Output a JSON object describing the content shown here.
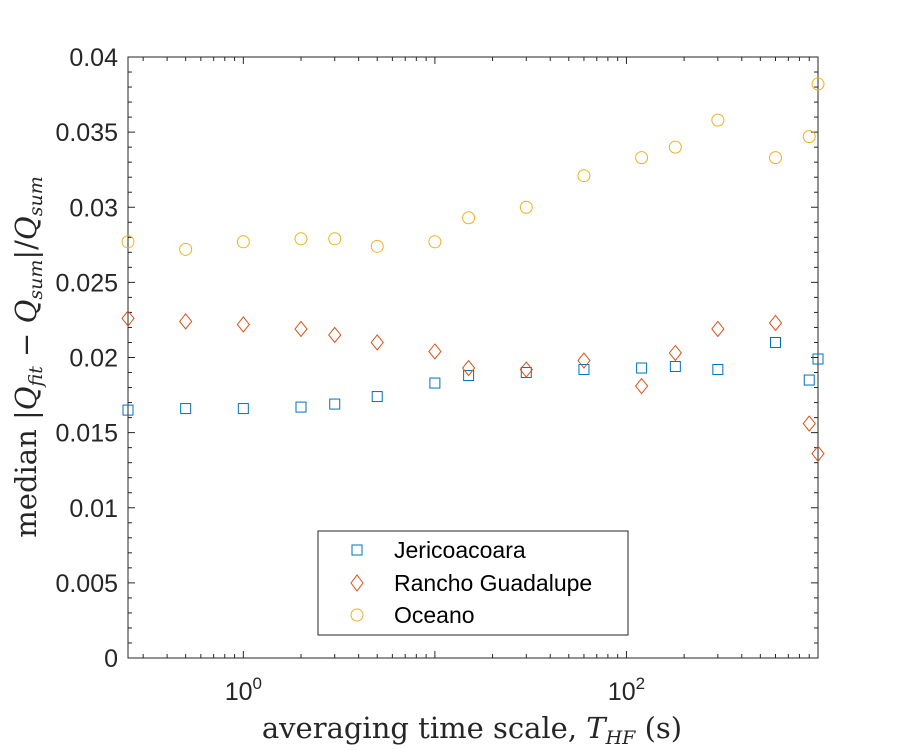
{
  "chart_data": {
    "type": "scatter",
    "x_scale": "log",
    "xlim": [
      0.25,
      1000
    ],
    "ylim": [
      0,
      0.04
    ],
    "x_ticks": [
      {
        "value": 1,
        "base": "10",
        "exp": "0"
      },
      {
        "value": 100,
        "base": "10",
        "exp": "2"
      }
    ],
    "y_ticks": [
      {
        "value": 0,
        "label": "0"
      },
      {
        "value": 0.005,
        "label": "0.005"
      },
      {
        "value": 0.01,
        "label": "0.01"
      },
      {
        "value": 0.015,
        "label": "0.015"
      },
      {
        "value": 0.02,
        "label": "0.02"
      },
      {
        "value": 0.025,
        "label": "0.025"
      },
      {
        "value": 0.03,
        "label": "0.03"
      },
      {
        "value": 0.035,
        "label": "0.035"
      },
      {
        "value": 0.04,
        "label": "0.04"
      }
    ],
    "xlabel": {
      "text": "averaging time scale, ",
      "var": "T",
      "sub": "HF",
      "unit": " (s)"
    },
    "ylabel": {
      "pre": "median |",
      "q1": "Q",
      "s1": "fit",
      "mid": " − ",
      "q2": "Q",
      "s2": "sum",
      "post": "|/",
      "q3": "Q",
      "s3": "sum"
    },
    "grid": false,
    "legend_position": "bottom-center",
    "series": [
      {
        "name": "Jericoacoara",
        "marker": "square",
        "color": "#0072BD",
        "x": [
          0.25,
          0.5,
          1,
          2,
          3,
          5,
          10,
          15,
          30,
          60,
          120,
          180,
          300,
          600,
          900,
          1000
        ],
        "y": [
          0.0165,
          0.0166,
          0.0166,
          0.0167,
          0.0169,
          0.0174,
          0.0183,
          0.0188,
          0.019,
          0.0192,
          0.0193,
          0.0194,
          0.0192,
          0.021,
          0.0185,
          0.0199
        ]
      },
      {
        "name": "Rancho Guadalupe",
        "marker": "diamond",
        "color": "#D95319",
        "x": [
          0.25,
          0.5,
          1,
          2,
          3,
          5,
          10,
          15,
          30,
          60,
          120,
          180,
          300,
          600,
          900,
          1000
        ],
        "y": [
          0.0226,
          0.0224,
          0.0222,
          0.0219,
          0.0215,
          0.021,
          0.0204,
          0.0193,
          0.0192,
          0.0198,
          0.0181,
          0.0203,
          0.0219,
          0.0223,
          0.0156,
          0.0136
        ]
      },
      {
        "name": "Oceano",
        "marker": "circle",
        "color": "#EDB120",
        "x": [
          0.25,
          0.5,
          1,
          2,
          3,
          5,
          10,
          15,
          30,
          60,
          120,
          180,
          300,
          600,
          900,
          1000
        ],
        "y": [
          0.0277,
          0.0272,
          0.0277,
          0.0279,
          0.0279,
          0.0274,
          0.0277,
          0.0293,
          0.03,
          0.0321,
          0.0333,
          0.034,
          0.0358,
          0.0333,
          0.0347,
          0.0382
        ]
      }
    ]
  }
}
